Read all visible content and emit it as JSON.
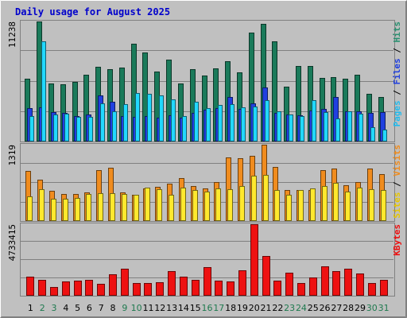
{
  "title": "Daily usage for August 2025",
  "colors": {
    "background": "#c0c0c0",
    "title": "#0000cc",
    "weekday": "#000000",
    "weekend": "#1f7a4f",
    "hits": "#1a7a5a",
    "files": "#2040e0",
    "pages": "#22d8ff",
    "visits": "#f08c1e",
    "sites": "#ffe82e",
    "kbytes": "#ee1111",
    "sep_hits": "#2a9070",
    "sep_files": "#2040e0",
    "sep_pages": "#22bbee",
    "sep_visits": "#f08c1e",
    "sep_sites": "#e8c600",
    "sep_kbytes": "#ee1111"
  },
  "chart_data": {
    "type": "bar",
    "categories": [
      "1",
      "2",
      "3",
      "4",
      "5",
      "6",
      "7",
      "8",
      "9",
      "10",
      "11",
      "12",
      "13",
      "14",
      "15",
      "16",
      "17",
      "18",
      "19",
      "20",
      "21",
      "22",
      "23",
      "24",
      "25",
      "26",
      "27",
      "28",
      "29",
      "30",
      "31"
    ],
    "weekend_days": [
      "2",
      "3",
      "9",
      "10",
      "16",
      "17",
      "23",
      "24",
      "30",
      "31"
    ],
    "panels": [
      {
        "ymax_label": "11238",
        "ymax": 11238,
        "right_label": {
          "pages": "Pages",
          "sep1": " / ",
          "files": "Files",
          "sep2": " / ",
          "hits": "Hits"
        },
        "series": [
          {
            "name": "Hits",
            "values": [
              5900,
              11238,
              5450,
              5350,
              5600,
              6250,
              7000,
              6800,
              6950,
              9150,
              8300,
              6550,
              7650,
              5450,
              6750,
              6200,
              6850,
              7500,
              6450,
              10200,
              11000,
              9350,
              5150,
              7100,
              7100,
              5950,
              6000,
              5850,
              6250,
              4500,
              4150
            ]
          },
          {
            "name": "Files",
            "values": [
              3100,
              3200,
              2750,
              2650,
              2400,
              2500,
              4350,
              3700,
              2350,
              2300,
              2350,
              2200,
              2450,
              2200,
              2700,
              3000,
              3100,
              4150,
              3050,
              3600,
              5050,
              2700,
              2550,
              2450,
              2900,
              3050,
              4200,
              2800,
              2850,
              2650,
              2750
            ]
          },
          {
            "name": "Pages",
            "values": [
              2400,
              9350,
              2500,
              2600,
              2300,
              2300,
              3600,
              2850,
              3500,
              4550,
              4450,
              4300,
              3950,
              2400,
              3750,
              3100,
              3400,
              3500,
              3200,
              3300,
              3900,
              2850,
              2500,
              2350,
              3900,
              2750,
              2150,
              2850,
              2600,
              1350,
              1150
            ]
          }
        ]
      },
      {
        "ymax_label": "1319",
        "ymax": 1319,
        "right_label": {
          "sites": "Sites",
          "sep1": " / ",
          "visits": "Visits"
        },
        "series": [
          {
            "name": "Visits",
            "values": [
              870,
              720,
              520,
              470,
              470,
              490,
              880,
              920,
              490,
              460,
              570,
              590,
              640,
              740,
              610,
              570,
              680,
              1100,
              1090,
              1120,
              1319,
              930,
              540,
              540,
              530,
              880,
              900,
              620,
              670,
              910,
              810
            ]
          },
          {
            "name": "Sites",
            "values": [
              430,
              550,
              390,
              390,
              400,
              470,
              480,
              480,
              470,
              450,
              580,
              550,
              460,
              580,
              540,
              510,
              560,
              550,
              610,
              780,
              800,
              540,
              450,
              530,
              560,
              600,
              660,
              510,
              580,
              550,
              540
            ]
          }
        ]
      },
      {
        "ymax_label": "4733415",
        "ymax": 4733415,
        "right_label": {
          "kbytes": "KBytes"
        },
        "series": [
          {
            "name": "KBytes",
            "values": [
              1280000,
              1030000,
              580000,
              940000,
              1010000,
              1060000,
              810000,
              1430000,
              1790000,
              860000,
              820000,
              900000,
              1650000,
              1260000,
              1040000,
              1870000,
              1000000,
              930000,
              1670000,
              4733415,
              2640000,
              980000,
              1500000,
              830000,
              1210000,
              1960000,
              1640000,
              1780000,
              1460000,
              830000,
              1070000
            ]
          }
        ]
      }
    ]
  }
}
